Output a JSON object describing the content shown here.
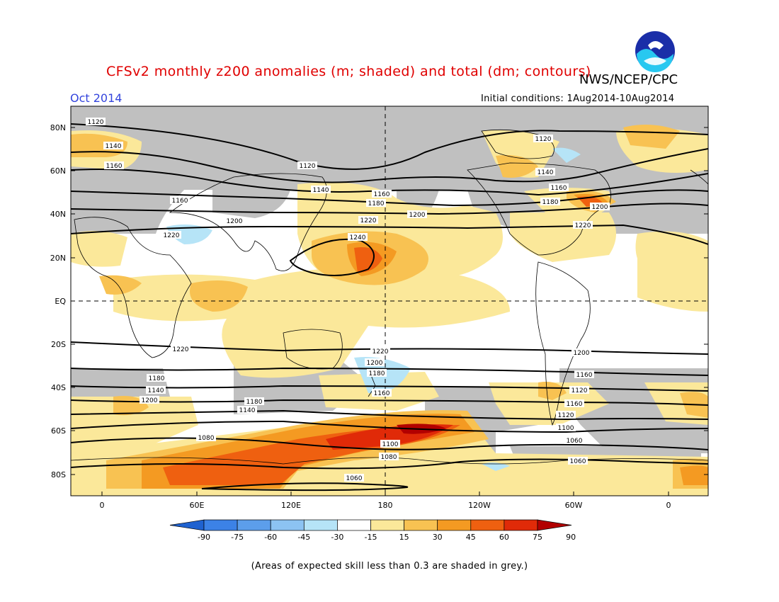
{
  "title": "CFSv2 monthly z200 anomalies (m; shaded) and total (dm; contours)",
  "organization": "NWS/NCEP/CPC",
  "valid_month": "Oct 2014",
  "initial_conditions": "Initial conditions: 1Aug2014-10Aug2014",
  "footnote": "(Areas of expected skill less than 0.3 are shaded in grey.)",
  "map": {
    "lat_labels": [
      "80N",
      "60N",
      "40N",
      "20N",
      "EQ",
      "20S",
      "40S",
      "60S",
      "80S"
    ],
    "lon_labels": [
      "0",
      "60E",
      "120E",
      "180",
      "120W",
      "60W",
      "0"
    ],
    "colorbar": {
      "ticks": [
        "-90",
        "-75",
        "-60",
        "-45",
        "-30",
        "-15",
        "15",
        "30",
        "45",
        "60",
        "75",
        "90"
      ],
      "colors": [
        "#1f62d0",
        "#3c82e6",
        "#5c9eeb",
        "#8cc3f2",
        "#b6e4f7",
        "#ffffff",
        "#fbe89a",
        "#f8c252",
        "#f49a22",
        "#ef6010",
        "#e02a08",
        "#b20000"
      ]
    },
    "contour_labels": [
      {
        "id": "a",
        "text": "1120"
      },
      {
        "id": "b",
        "text": "1140"
      },
      {
        "id": "c",
        "text": "1160"
      },
      {
        "id": "d",
        "text": "1120"
      },
      {
        "id": "e",
        "text": "1140"
      },
      {
        "id": "f",
        "text": "1160"
      },
      {
        "id": "g",
        "text": "1180"
      },
      {
        "id": "h",
        "text": "1200"
      },
      {
        "id": "i",
        "text": "1220"
      },
      {
        "id": "j",
        "text": "1160"
      },
      {
        "id": "k",
        "text": "1200"
      },
      {
        "id": "l",
        "text": "1220"
      },
      {
        "id": "m",
        "text": "1240"
      },
      {
        "id": "n",
        "text": "1120"
      },
      {
        "id": "o",
        "text": "1140"
      },
      {
        "id": "p",
        "text": "1160"
      },
      {
        "id": "q",
        "text": "1180"
      },
      {
        "id": "r",
        "text": "1200"
      },
      {
        "id": "s",
        "text": "1220"
      },
      {
        "id": "t",
        "text": "1220"
      },
      {
        "id": "u",
        "text": "1220"
      },
      {
        "id": "v",
        "text": "1200"
      },
      {
        "id": "w",
        "text": "1200"
      },
      {
        "id": "x",
        "text": "1180"
      },
      {
        "id": "y",
        "text": "1160"
      },
      {
        "id": "z",
        "text": "1180"
      },
      {
        "id": "aa",
        "text": "1160"
      },
      {
        "id": "ab",
        "text": "1140"
      },
      {
        "id": "ac",
        "text": "1120"
      },
      {
        "id": "ad",
        "text": "1200"
      },
      {
        "id": "ae",
        "text": "1180"
      },
      {
        "id": "af",
        "text": "1160"
      },
      {
        "id": "ag",
        "text": "1140"
      },
      {
        "id": "ah",
        "text": "1120"
      },
      {
        "id": "ai",
        "text": "1080"
      },
      {
        "id": "aj",
        "text": "1100"
      },
      {
        "id": "ak",
        "text": "1080"
      },
      {
        "id": "al",
        "text": "1100"
      },
      {
        "id": "am",
        "text": "1060"
      },
      {
        "id": "an",
        "text": "1060"
      },
      {
        "id": "ao",
        "text": "1060"
      }
    ]
  }
}
